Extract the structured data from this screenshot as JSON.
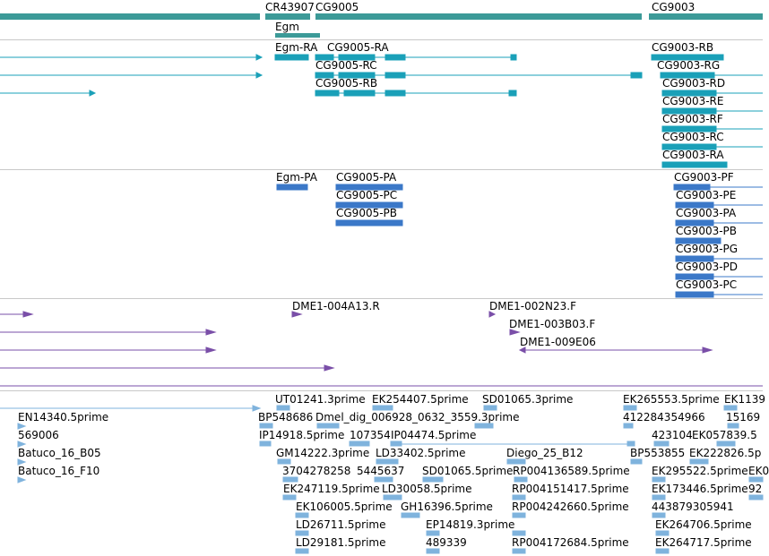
{
  "colors": {
    "gene": "#3c9a98",
    "transcript": "#1aa0b8",
    "protein": "#3b78c8",
    "clone": "#7a4fa8",
    "est": "#7fb3dd",
    "divider": "#c8c8c8"
  },
  "tracks": {
    "gene_span": {
      "labels": [
        "CR43907",
        "CG9005",
        "CG9003",
        "Egm"
      ]
    },
    "transcripts": {
      "labels": [
        "Egm-RA",
        "CG9005-RA",
        "CG9005-RC",
        "CG9005-RB",
        "CG9003-RB",
        "CG9003-RG",
        "CG9003-RD",
        "CG9003-RE",
        "CG9003-RF",
        "CG9003-RC",
        "CG9003-RA"
      ]
    },
    "proteins": {
      "labels": [
        "Egm-PA",
        "CG9005-PA",
        "CG9005-PC",
        "CG9005-PB",
        "CG9003-PF",
        "CG9003-PE",
        "CG9003-PA",
        "CG9003-PB",
        "CG9003-PG",
        "CG9003-PD",
        "CG9003-PC"
      ]
    },
    "clones": {
      "labels": [
        "DME1-004A13.R",
        "DME1-002N23.F",
        "DME1-003B03.F",
        "DME1-009E06"
      ]
    },
    "ests": {
      "labels": [
        "UT01241.3prime",
        "EK254407.5prime",
        "SD01065.3prime",
        "EK265553.5prime",
        "EK1139",
        "EN14340.5prime",
        "BP548686",
        "Dmel_dig_006928_0632_3559.3prime",
        "412284354966",
        "15169",
        "569006",
        "IP14918.5prime",
        "107354",
        "IP04474.5prime",
        "423104",
        "EK057839.5",
        "Batuco_16_B05",
        "GM14222.3prime",
        "LD33402.5prime",
        "Diego_25_B12",
        "BP553855",
        "EK222826.5p",
        "Batuco_16_F10",
        "3704278258",
        "5445637",
        "SD01065.5prime",
        "RP004136589.5prime",
        "EK295522.5prime",
        "EK0",
        "EK247119.5prime",
        "LD30058.5prime",
        "RP004151417.5prime",
        "EK173446.5prime",
        "92",
        "EK106005.5prime",
        "GH16396.5prime",
        "RP004242660.5prime",
        "443879305941",
        "LD26711.5prime",
        "EP14819.3prime",
        "EK264706.5prime",
        "LD29181.5prime",
        "489339",
        "RP004172684.5prime",
        "EK264717.5prime"
      ]
    }
  }
}
